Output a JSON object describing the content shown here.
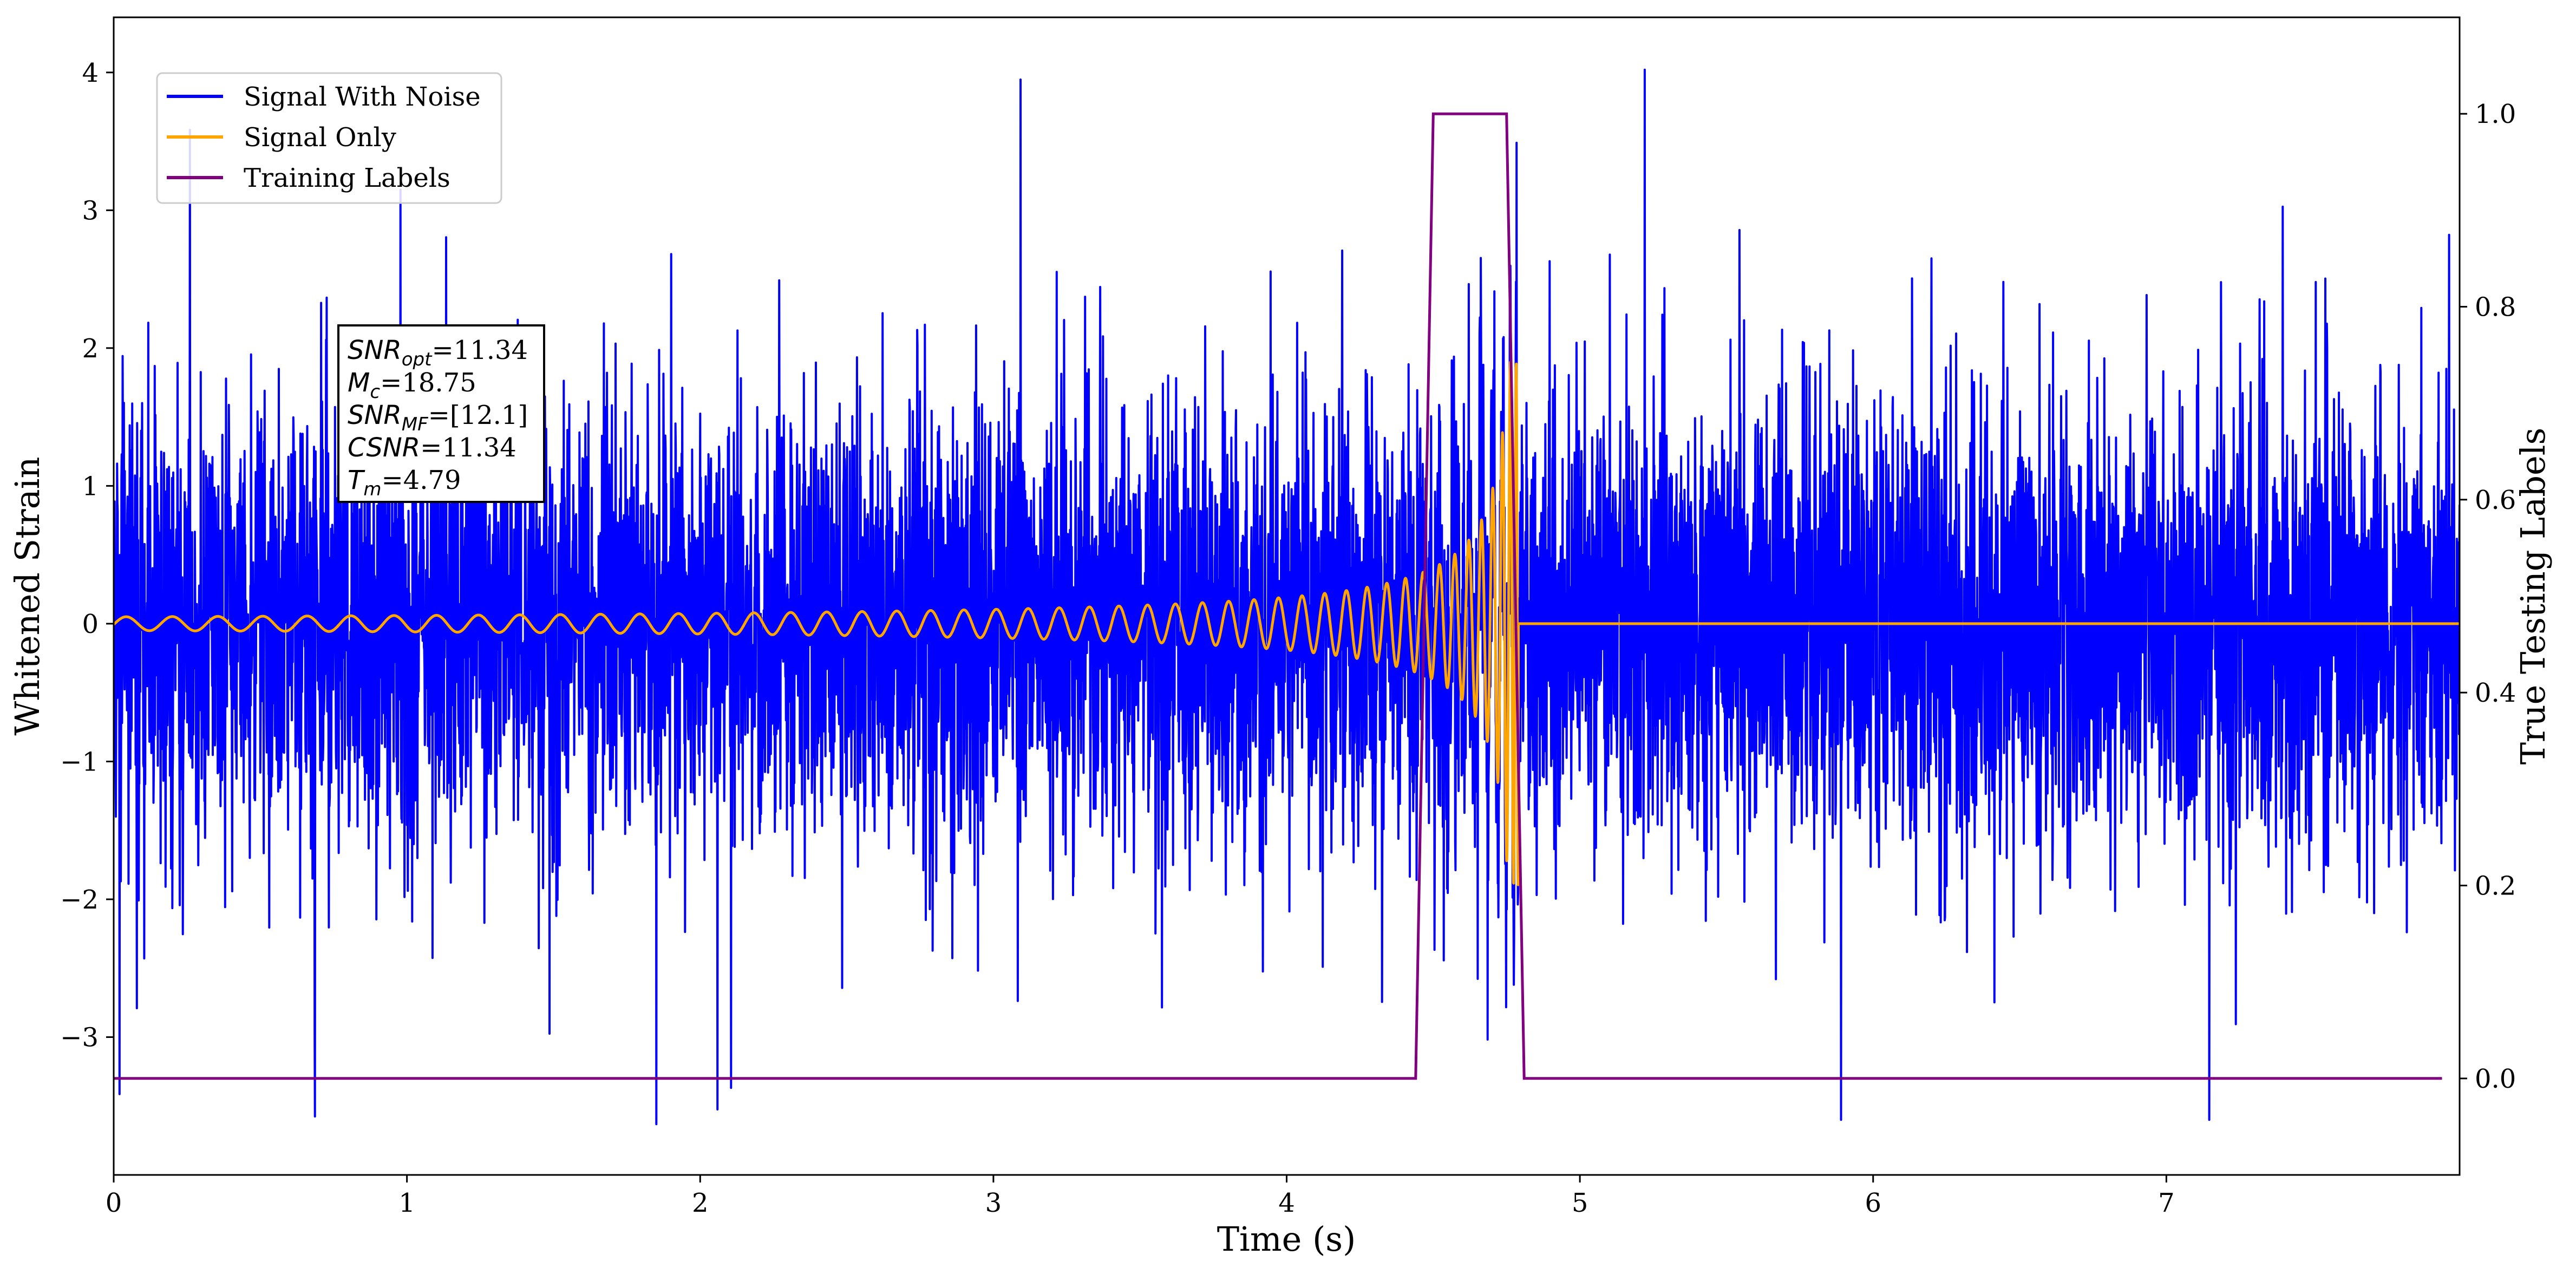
{
  "chart_data": {
    "type": "line",
    "title": "",
    "xlabel": "Time (s)",
    "ylabel": "Whitened Strain",
    "y2label": "True Testing Labels",
    "xlim": [
      0,
      8
    ],
    "ylim": [
      -4,
      4.4
    ],
    "y2lim": [
      -0.1,
      1.1
    ],
    "x_ticks": [
      "0",
      "1",
      "2",
      "3",
      "4",
      "5",
      "6",
      "7"
    ],
    "y_ticks": [
      "−3",
      "−2",
      "−1",
      "0",
      "1",
      "2",
      "3",
      "4"
    ],
    "y2_ticks": [
      "0.0",
      "0.2",
      "0.4",
      "0.6",
      "0.8",
      "1.0"
    ],
    "grid": false,
    "legend_position": "top-left",
    "series": [
      {
        "name": "Signal With Noise",
        "color": "#0000ff",
        "axis": "left",
        "description_values": {
          "duration_s": 8,
          "approx_std": 0.8,
          "min": -3.6,
          "max": 4.02
        }
      },
      {
        "name": "Signal Only",
        "color": "#ffa500",
        "axis": "left",
        "chirp": {
          "merger_time_s": 4.79,
          "initial_amplitude": 0.05,
          "peak_amplitude": 1.9,
          "post_merger_value": 0
        }
      },
      {
        "name": "Training Labels",
        "color": "#800080",
        "axis": "right",
        "x": [
          0,
          4.44,
          4.5,
          4.75,
          4.81,
          7.94
        ],
        "values": [
          0,
          0,
          1,
          1,
          0,
          0
        ]
      }
    ],
    "annotation": {
      "lines": [
        {
          "base": "SNR",
          "sub": "opt",
          "value": "=11.34"
        },
        {
          "base": "M",
          "sub": "c",
          "value": "=18.75"
        },
        {
          "base": "SNR",
          "sub": "MF",
          "value": "=[12.1]"
        },
        {
          "base": "CSNR",
          "sub": "",
          "value": "=11.34"
        },
        {
          "base": "T",
          "sub": "m",
          "value": "=4.79"
        }
      ]
    }
  }
}
